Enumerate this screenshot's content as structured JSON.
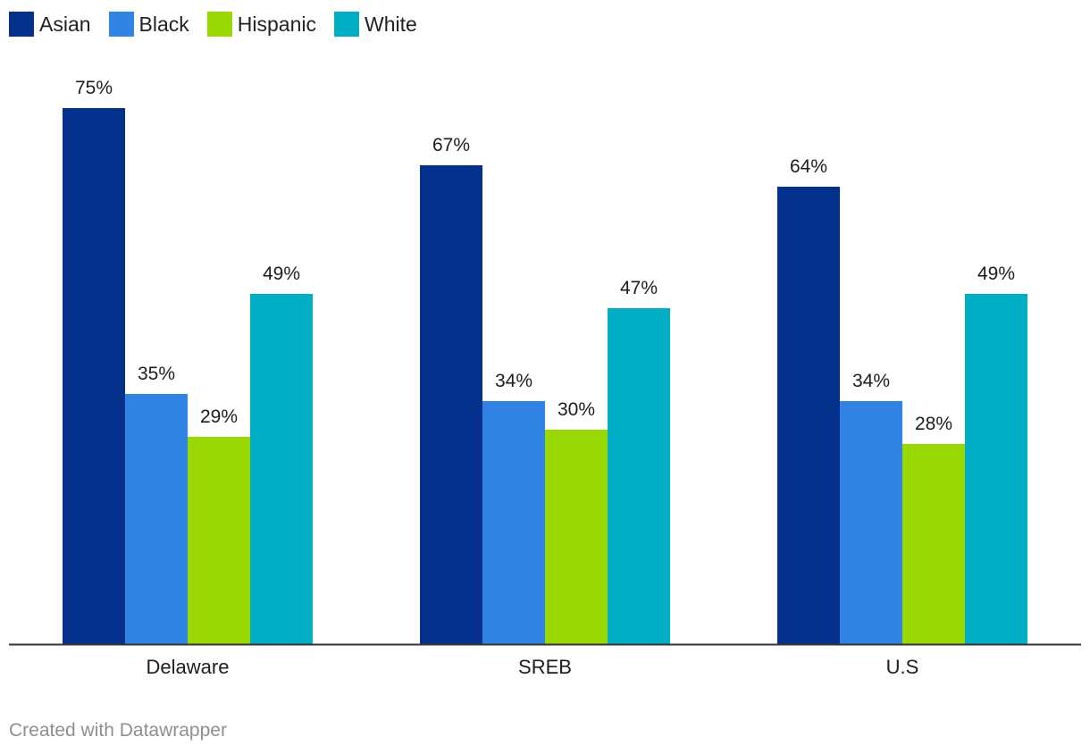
{
  "chart_data": {
    "type": "bar",
    "categories": [
      "Delaware",
      "SREB",
      "U.S"
    ],
    "series": [
      {
        "name": "Asian",
        "color": "#03308a",
        "values": [
          75,
          67,
          64
        ],
        "labels": [
          "75%",
          "67%",
          "64%"
        ]
      },
      {
        "name": "Black",
        "color": "#3083e3",
        "values": [
          35,
          34,
          34
        ],
        "labels": [
          "35%",
          "34%",
          "34%"
        ]
      },
      {
        "name": "Hispanic",
        "color": "#99d803",
        "values": [
          29,
          30,
          28
        ],
        "labels": [
          "29%",
          "30%",
          "28%"
        ]
      },
      {
        "name": "White",
        "color": "#00afc6",
        "values": [
          49,
          47,
          49
        ],
        "labels": [
          "49%",
          "47%",
          "49%"
        ]
      }
    ],
    "ylim": [
      0,
      75
    ],
    "title": "",
    "xlabel": "",
    "ylabel": "",
    "legend": "top-left"
  },
  "credit": "Created with Datawrapper"
}
